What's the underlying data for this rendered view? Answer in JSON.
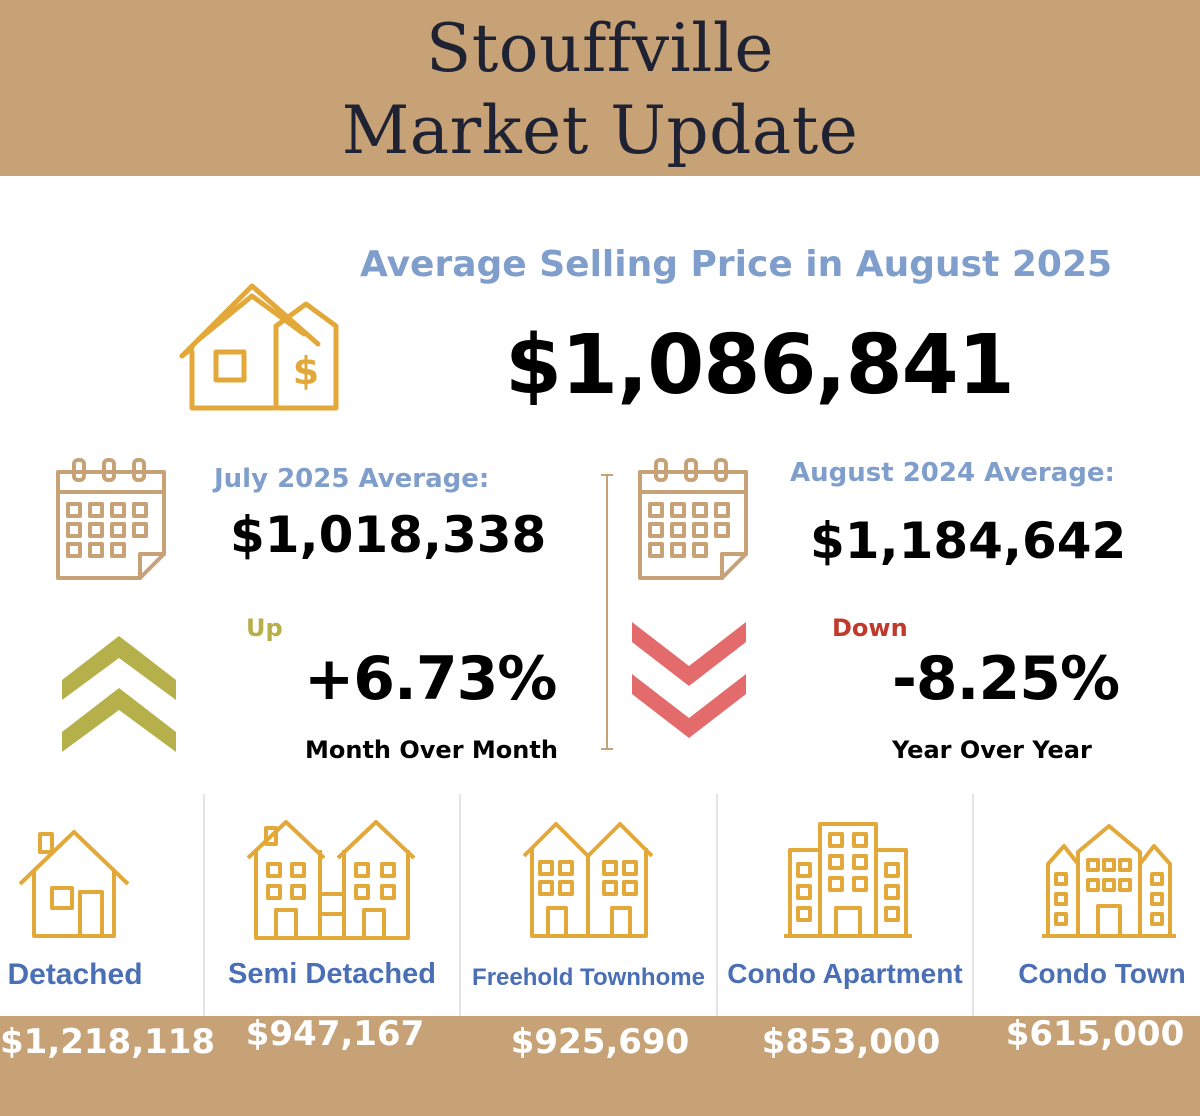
{
  "header": {
    "line1": "Stouffville",
    "line2": "Market Update"
  },
  "average": {
    "heading": "Average Selling Price in August 2025",
    "price": "$1,086,841"
  },
  "month_compare": {
    "label": "July 2025 Average:",
    "value": "$1,018,338",
    "direction": "Up",
    "percent": "+6.73%",
    "period": "Month Over Month"
  },
  "year_compare": {
    "label": "August 2024 Average:",
    "value": "$1,184,642",
    "direction": "Down",
    "percent": "-8.25%",
    "period": "Year Over Year"
  },
  "property_types": [
    {
      "label": "Detached",
      "price": "$1,218,118",
      "icon": "detached-house-icon"
    },
    {
      "label": "Semi Detached",
      "price": "$947,167",
      "icon": "semi-detached-icon"
    },
    {
      "label": "Freehold Townhome",
      "price": "$925,690",
      "icon": "freehold-townhome-icon"
    },
    {
      "label": "Condo Apartment",
      "price": "$853,000",
      "icon": "condo-apartment-icon"
    },
    {
      "label": "Condo Town",
      "price": "$615,000",
      "icon": "condo-town-icon"
    }
  ],
  "colors": {
    "gold": "#c8a277",
    "icon_gold": "#e2a93a",
    "blue": "#7f9ecb",
    "type_blue": "#4a6fb5",
    "up_green": "#b5b04a",
    "down_red": "#e36b6b"
  }
}
